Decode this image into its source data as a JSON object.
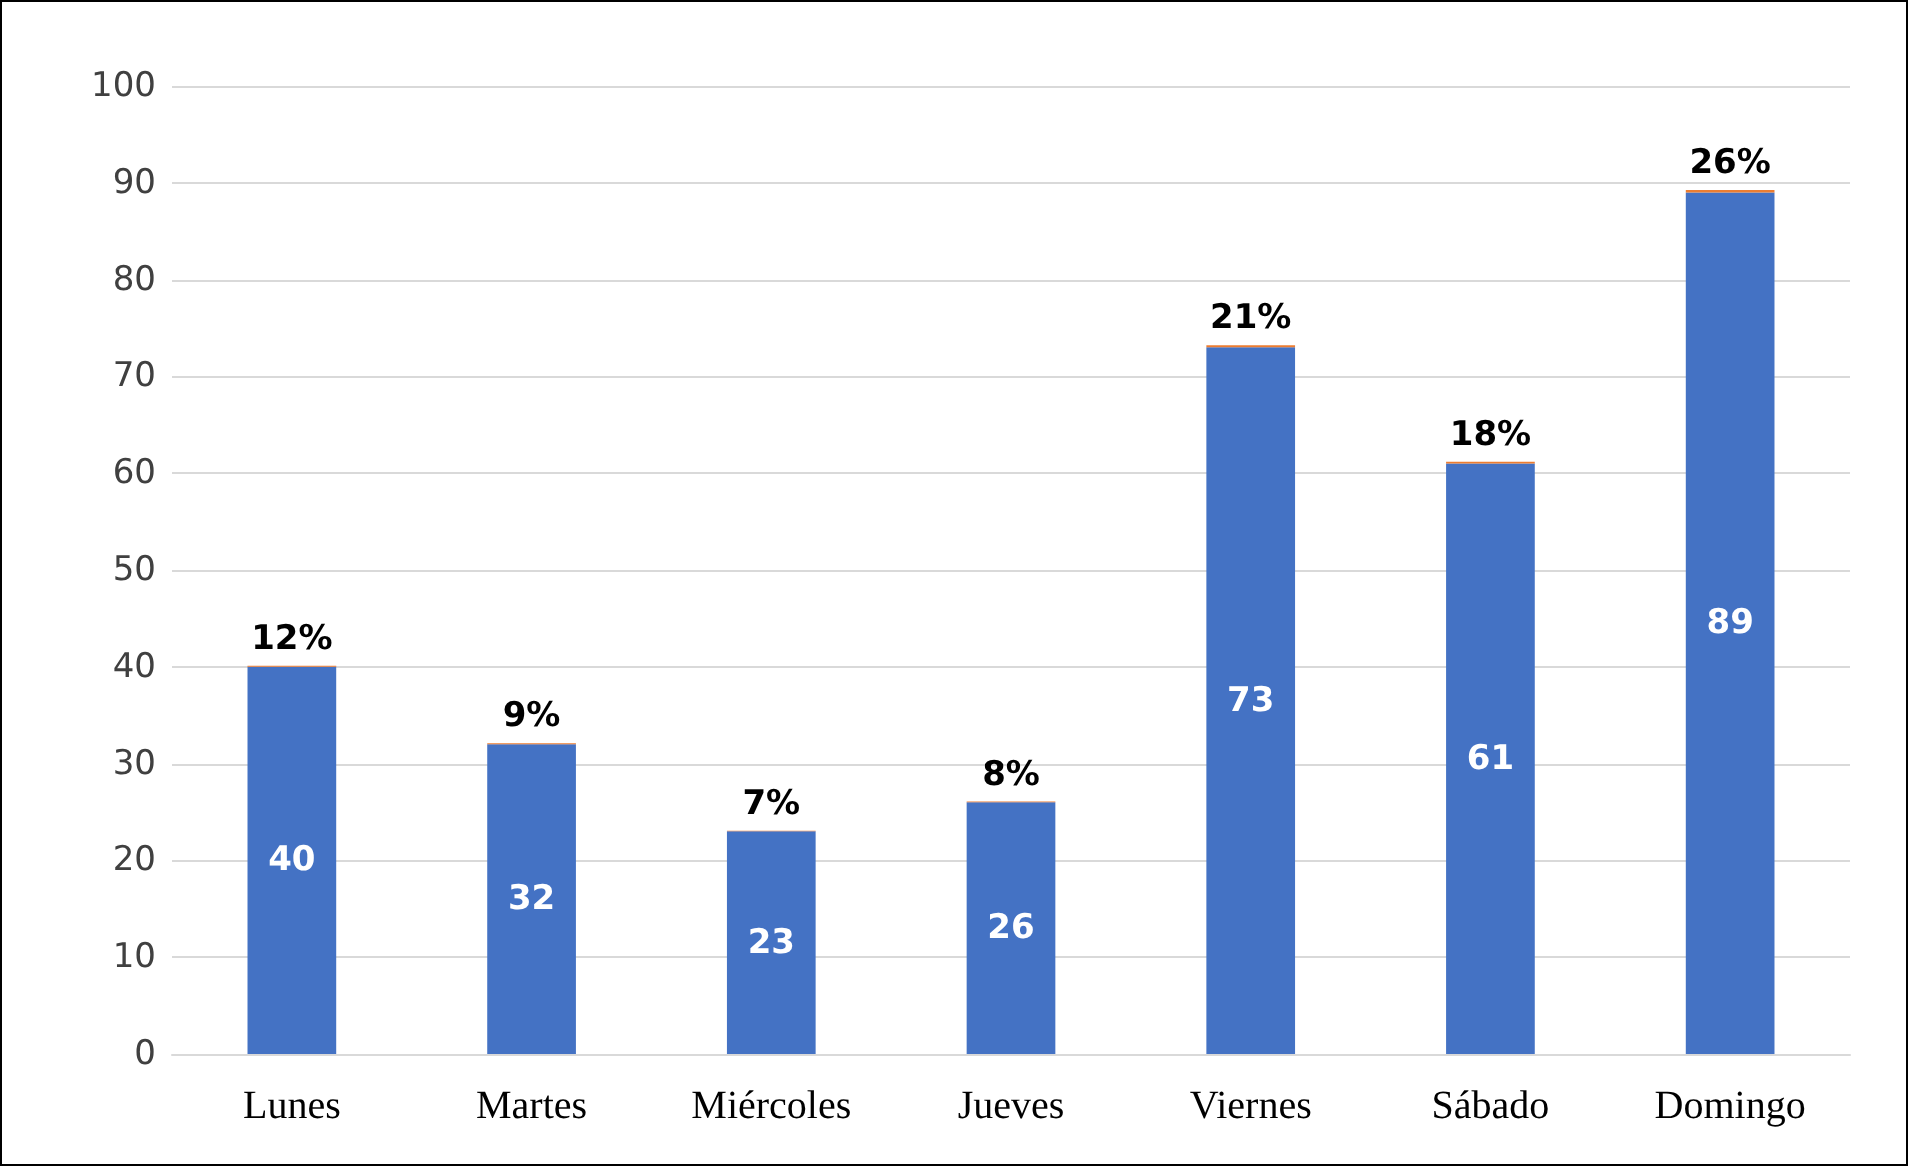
{
  "chart_data": {
    "type": "bar",
    "stacked": true,
    "categories": [
      "Lunes",
      "Martes",
      "Miércoles",
      "Jueves",
      "Viernes",
      "Sábado",
      "Domingo"
    ],
    "series": [
      {
        "color": "#4472c4",
        "values": [
          40,
          32,
          23,
          26,
          73,
          61,
          89
        ],
        "value_labels": [
          "40",
          "32",
          "23",
          "26",
          "73",
          "61",
          "89"
        ]
      },
      {
        "color": "#ed7d31",
        "values": [
          0.12,
          0.09,
          0.07,
          0.08,
          0.21,
          0.18,
          0.26
        ],
        "value_labels": [
          "12%",
          "9%",
          "7%",
          "8%",
          "21%",
          "18%",
          "26%"
        ]
      }
    ],
    "ylim": [
      0,
      100
    ],
    "yticks": [
      0,
      10,
      20,
      30,
      40,
      50,
      60,
      70,
      80,
      90,
      100
    ],
    "grid": "y"
  }
}
